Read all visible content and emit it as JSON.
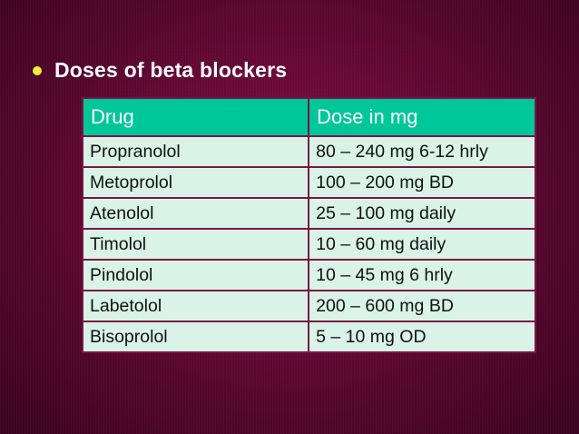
{
  "slide": {
    "bullet_text": "Doses of beta blockers",
    "colors": {
      "background": "#6a0a39",
      "bullet": "#f1ef3a",
      "header_bg": "#00c79a",
      "cell_bg": "#d9f3e7"
    }
  },
  "table": {
    "headers": [
      "Drug",
      "Dose in mg"
    ],
    "rows": [
      [
        "Propranolol",
        "80 – 240 mg  6-12 hrly"
      ],
      [
        "Metoprolol",
        "100 – 200 mg BD"
      ],
      [
        "Atenolol",
        "25 – 100 mg daily"
      ],
      [
        "Timolol",
        "10 – 60 mg daily"
      ],
      [
        "Pindolol",
        "10 – 45 mg 6 hrly"
      ],
      [
        "Labetolol",
        "200 – 600 mg BD"
      ],
      [
        "Bisoprolol",
        "5 – 10 mg OD"
      ]
    ]
  }
}
